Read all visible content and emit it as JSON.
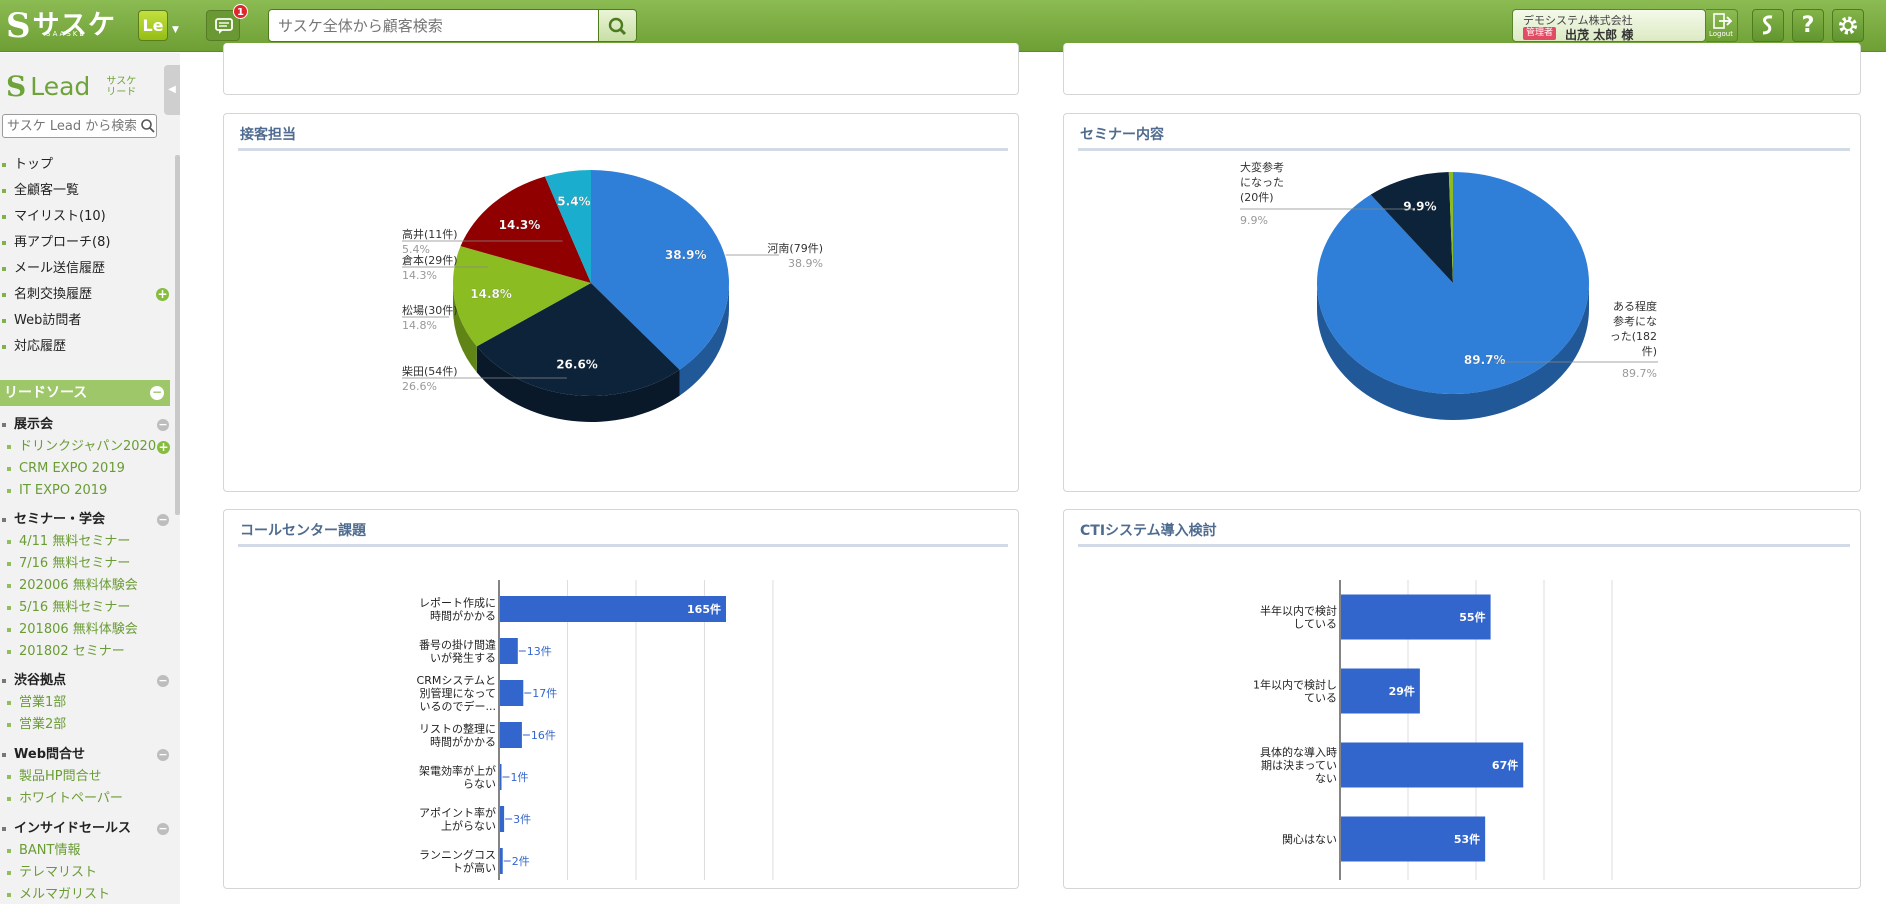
{
  "topbar": {
    "logo_mark": "S",
    "logo_text": "サスケ",
    "logo_sub": "SAASKE",
    "app_switch": "Le",
    "message_count": "1",
    "search_placeholder": "サスケ全体から顧客検索",
    "company": "デモシステム株式会社",
    "role_badge": "管理者",
    "user_name": "出茂 太郎 様",
    "logout_label": "Logout",
    "help_label": "?"
  },
  "sidebar": {
    "lead_mark": "S",
    "lead_title": "Lead",
    "lead_sub": "サスケ リード",
    "search_placeholder": "サスケ Lead から検索",
    "nav": [
      {
        "label": "トップ"
      },
      {
        "label": "全顧客一覧"
      },
      {
        "label": "マイリスト(10)"
      },
      {
        "label": "再アプローチ(8)"
      },
      {
        "label": "メール送信履歴"
      },
      {
        "label": "名刺交換履歴"
      },
      {
        "label": "Web訪問者"
      },
      {
        "label": "対応履歴"
      }
    ],
    "section_title": "リードソース",
    "groups": [
      {
        "title": "展示会",
        "items": [
          "ドリンクジャパン2020",
          "CRM EXPO 2019",
          "IT EXPO 2019"
        ]
      },
      {
        "title": "セミナー・学会",
        "items": [
          "4/11 無料セミナー",
          "7/16 無料セミナー",
          "202006 無料体験会",
          "5/16 無料セミナー",
          "201806 無料体験会",
          "201802 セミナー"
        ]
      },
      {
        "title": "渋谷拠点",
        "items": [
          "営業1部",
          "営業2部"
        ]
      },
      {
        "title": "Web問合せ",
        "items": [
          "製品HP問合せ",
          "ホワイトペーパー"
        ]
      },
      {
        "title": "インサイドセールス",
        "items": [
          "BANT情報",
          "テレマリスト",
          "メルマガリスト"
        ]
      }
    ]
  },
  "panels": {
    "staff": {
      "title": "接客担当"
    },
    "seminar": {
      "title": "セミナー内容"
    },
    "callcenter": {
      "title": "コールセンター課題"
    },
    "cti": {
      "title": "CTIシステム導入検討"
    }
  },
  "chart_data": [
    {
      "type": "pie",
      "title": "接客担当",
      "slices": [
        {
          "label": "河南(79件)",
          "value": 79,
          "percent": "38.9%",
          "color": "#2f7ed8"
        },
        {
          "label": "柴田(54件)",
          "value": 54,
          "percent": "26.6%",
          "color": "#0d233a"
        },
        {
          "label": "松場(30件)",
          "value": 30,
          "percent": "14.8%",
          "color": "#8bbc21"
        },
        {
          "label": "倉本(29件)",
          "value": 29,
          "percent": "14.3%",
          "color": "#910000"
        },
        {
          "label": "高井(11件)",
          "value": 11,
          "percent": "5.4%",
          "color": "#1aadce"
        }
      ]
    },
    {
      "type": "pie",
      "title": "セミナー内容",
      "slices": [
        {
          "label": "ある程度参考になった(182件)",
          "label_lines": [
            "ある程度",
            "参考にな",
            "った(182",
            "件)"
          ],
          "value": 182,
          "percent": "89.7%",
          "color": "#2f7ed8"
        },
        {
          "label": "大変参考になった(20件)",
          "label_lines": [
            "大変参考",
            "になった",
            "(20件)"
          ],
          "value": 20,
          "percent": "9.9%",
          "color": "#0d233a"
        },
        {
          "label": "",
          "label_lines": [],
          "value": 1,
          "percent": "",
          "color": "#8bbc21"
        }
      ]
    },
    {
      "type": "bar",
      "orientation": "horizontal",
      "title": "コールセンター課題",
      "categories": [
        [
          "レポート作成に",
          "時間がかかる"
        ],
        [
          "番号の掛け間違",
          "いが発生する"
        ],
        [
          "CRMシステムと",
          "別管理になって",
          "いるのでデー..."
        ],
        [
          "リストの整理に",
          "時間がかかる"
        ],
        [
          "架電効率が上が",
          "らない"
        ],
        [
          "アポイント率が",
          "上がらない"
        ],
        [
          "ランニングコス",
          "トが高い"
        ]
      ],
      "values": [
        165,
        13,
        17,
        16,
        1,
        3,
        2
      ],
      "value_labels": [
        "165件",
        "13件",
        "17件",
        "16件",
        "1件",
        "3件",
        "2件"
      ],
      "xlim": [
        0,
        200
      ],
      "grid": true,
      "color": "#3366cc"
    },
    {
      "type": "bar",
      "orientation": "horizontal",
      "title": "CTIシステム導入検討",
      "categories": [
        [
          "半年以内で検討",
          "している"
        ],
        [
          "1年以内で検討し",
          "ている"
        ],
        [
          "具体的な導入時",
          "期は決まってい",
          "ない"
        ],
        [
          "関心はない"
        ]
      ],
      "values": [
        55,
        29,
        67,
        53
      ],
      "value_labels": [
        "55件",
        "29件",
        "67件",
        "53件"
      ],
      "xlim": [
        0,
        100
      ],
      "grid": true,
      "color": "#3366cc"
    }
  ]
}
